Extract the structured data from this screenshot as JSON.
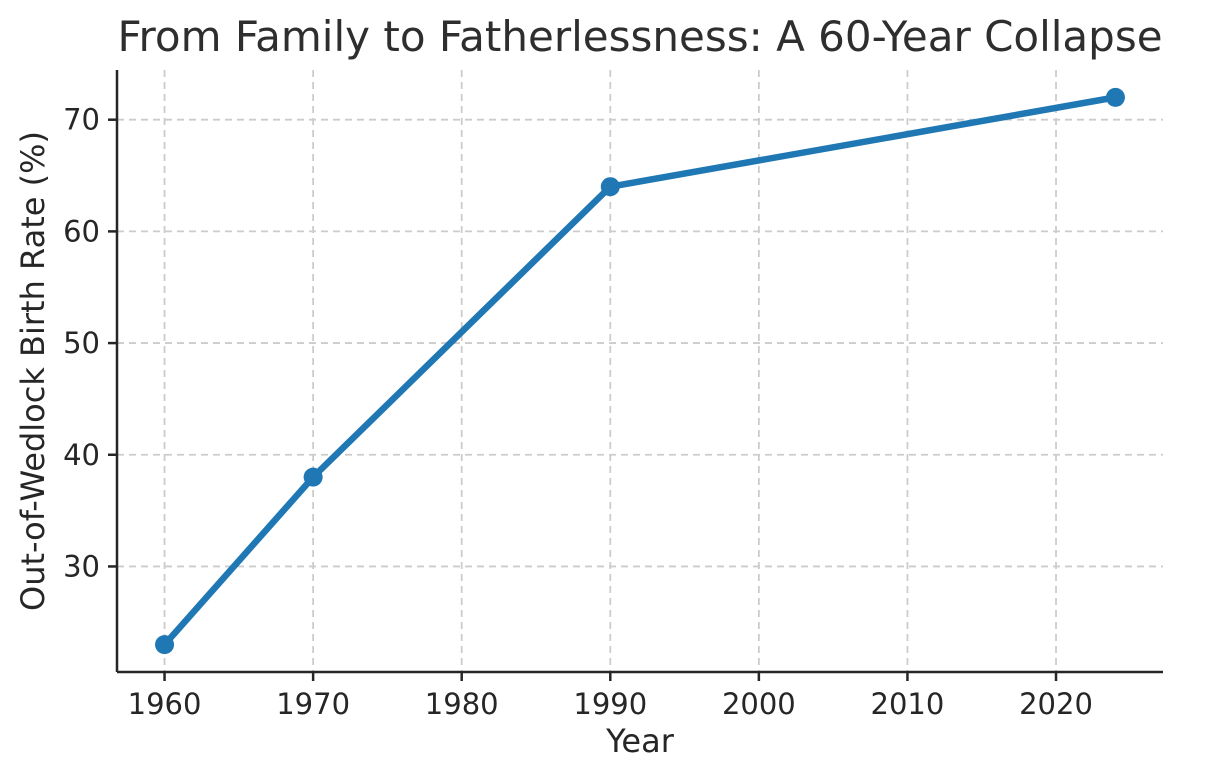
{
  "chart_data": {
    "type": "line",
    "title": "From Family to Fatherlessness: A 60-Year Collapse",
    "xlabel": "Year",
    "ylabel": "Out-of-Wedlock Birth Rate (%)",
    "series": [
      {
        "name": "Out-of-Wedlock Birth Rate",
        "x": [
          1960,
          1970,
          1990,
          2024
        ],
        "values": [
          23,
          38,
          64,
          72
        ]
      }
    ],
    "xticks": [
      1960,
      1970,
      1980,
      1990,
      2000,
      2010,
      2020
    ],
    "yticks": [
      30,
      40,
      50,
      60,
      70
    ],
    "xlim": [
      1956.8,
      2027.2
    ],
    "ylim": [
      20.55,
      74.45
    ],
    "grid": "dashed, both axes",
    "legend": "none",
    "marker": "circle",
    "line_color": "#1f77b4",
    "grid_color": "#cccccc",
    "text_color": "#262626",
    "background_color": "#ffffff"
  }
}
